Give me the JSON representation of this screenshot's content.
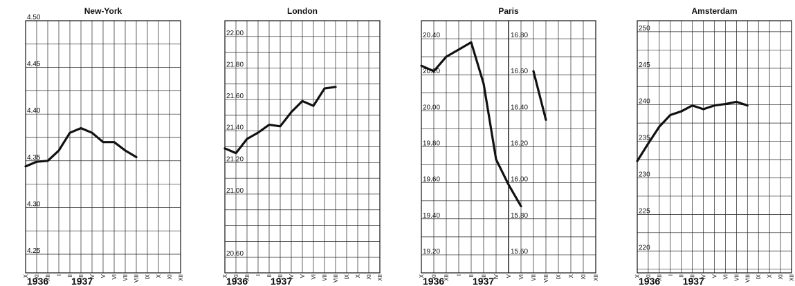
{
  "months": [
    "X",
    "XI",
    "XII",
    "I",
    "II",
    "III",
    "IV",
    "V",
    "VI",
    "VII",
    "VIII",
    "IX",
    "X",
    "XI",
    "XII"
  ],
  "year_labels": [
    "1936",
    "1937"
  ],
  "chart_data": [
    {
      "type": "line",
      "title": "New-York",
      "yticks": [
        "4.25",
        "4.30",
        "4.35",
        "4.40",
        "4.45",
        "4.50"
      ],
      "ylim": [
        4.23,
        4.5
      ],
      "grid": true,
      "series": [
        {
          "values": [
            4.344,
            4.349,
            4.35,
            4.361,
            4.38,
            4.385,
            4.38,
            4.37,
            4.37,
            4.361,
            4.354
          ]
        }
      ]
    },
    {
      "type": "line",
      "title": "London",
      "yticks": [
        "20.60",
        "21.00",
        "21.20",
        "21.40",
        "21.60",
        "21.80",
        "22.00"
      ],
      "ylim": [
        20.5,
        22.1
      ],
      "grid": true,
      "series": [
        {
          "values": [
            21.29,
            21.26,
            21.35,
            21.39,
            21.44,
            21.43,
            21.52,
            21.59,
            21.56,
            21.67,
            21.68
          ]
        }
      ]
    },
    {
      "type": "line",
      "title": "Paris",
      "yticks": [
        "19.20",
        "19.40",
        "19.60",
        "19.80",
        "20.00",
        "20.20",
        "20.40"
      ],
      "ylim": [
        19.1,
        20.5
      ],
      "grid": true,
      "series": [
        {
          "values": [
            20.25,
            20.22,
            20.3,
            20.34,
            20.38,
            20.15,
            19.73,
            19.59,
            19.47
          ]
        }
      ],
      "right_axis": {
        "yticks": [
          "15.60",
          "15.80",
          "16.00",
          "16.20",
          "16.40",
          "16.60",
          "16.80"
        ],
        "ylim": [
          15.5,
          16.9
        ],
        "series": [
          {
            "start_index": 9,
            "values": [
              16.62,
              16.35
            ]
          }
        ]
      }
    },
    {
      "type": "line",
      "title": "Amsterdam",
      "yticks": [
        "220",
        "225",
        "230",
        "235",
        "240",
        "245",
        "250"
      ],
      "ylim": [
        217,
        251.5
      ],
      "grid": true,
      "series": [
        {
          "values": [
            232.3,
            234.7,
            237.0,
            238.6,
            239.1,
            239.9,
            239.4,
            239.9,
            240.1,
            240.4,
            239.9
          ]
        }
      ]
    }
  ]
}
